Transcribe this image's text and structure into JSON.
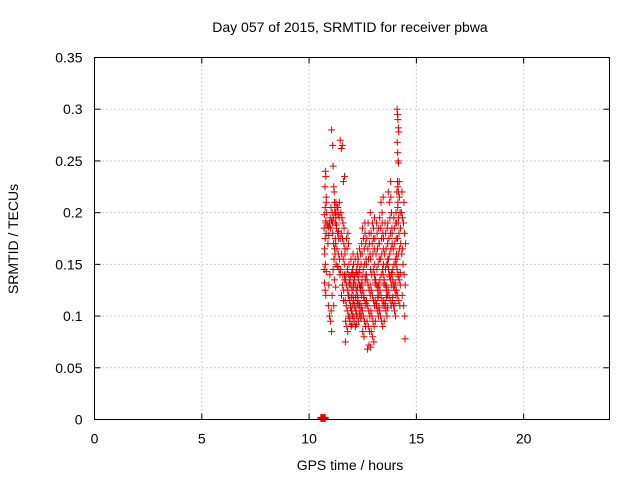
{
  "chart_data": {
    "type": "scatter",
    "title": "Day 057 of 2015, SRMTID for receiver pbwa",
    "xlabel": "GPS time / hours",
    "ylabel": "SRMTID / TECUs",
    "xlim": [
      0,
      24
    ],
    "ylim": [
      0,
      0.35
    ],
    "xticks": [
      "0",
      "5",
      "10",
      "15",
      "20"
    ],
    "yticks": [
      "0",
      "0.05",
      "0.1",
      "0.15",
      "0.2",
      "0.25",
      "0.3",
      "0.35"
    ],
    "grid": true,
    "legend": "none",
    "marker": "plus",
    "color": "#e00000",
    "series": [
      {
        "x": [
          10.55,
          10.6,
          10.65,
          10.7,
          10.75,
          10.55,
          10.6,
          10.65,
          10.7,
          10.75,
          10.7,
          10.72,
          10.75,
          10.78,
          10.8,
          10.72,
          10.75,
          10.78,
          10.8,
          10.74,
          10.76,
          10.78,
          10.8,
          10.82,
          10.7,
          10.73,
          10.76,
          10.79,
          10.71,
          10.75,
          10.78,
          10.85,
          10.9,
          10.95,
          11.0,
          11.05,
          10.88,
          10.92,
          10.98,
          11.02,
          10.9,
          10.95,
          11.0,
          11.05,
          10.92,
          10.97,
          11.03,
          11.05,
          11.1,
          11.12,
          11.15,
          11.18,
          11.08,
          11.13,
          11.17,
          11.2,
          11.1,
          11.14,
          11.19,
          11.22,
          11.09,
          11.16,
          11.21,
          11.12,
          11.18,
          11.24,
          11.07,
          11.15,
          11.2,
          11.25,
          11.3,
          11.35,
          11.4,
          11.22,
          11.28,
          11.33,
          11.38,
          11.24,
          11.3,
          11.36,
          11.42,
          11.26,
          11.32,
          11.39,
          11.44,
          11.23,
          11.34,
          11.41,
          11.28,
          11.37,
          11.45,
          11.25,
          11.35,
          11.45,
          11.5,
          11.55,
          11.6,
          11.65,
          11.48,
          11.53,
          11.58,
          11.63,
          11.5,
          11.56,
          11.62,
          11.67,
          11.52,
          11.59,
          11.66,
          11.47,
          11.57,
          11.64,
          11.55,
          11.61,
          11.51,
          11.6,
          11.65,
          11.7,
          11.75,
          11.8,
          11.85,
          11.68,
          11.73,
          11.78,
          11.83,
          11.7,
          11.76,
          11.82,
          11.87,
          11.72,
          11.79,
          11.86,
          11.67,
          11.77,
          11.84,
          11.74,
          11.81,
          11.69,
          11.8,
          11.85,
          11.9,
          11.95,
          12.0,
          12.05,
          11.88,
          11.93,
          11.98,
          12.03,
          11.9,
          11.96,
          12.02,
          12.07,
          11.92,
          11.99,
          12.06,
          11.87,
          11.97,
          12.04,
          11.94,
          12.01,
          11.89,
          12.0,
          11.95,
          12.05,
          12.05,
          12.1,
          12.15,
          12.2,
          12.25,
          12.08,
          12.13,
          12.18,
          12.23,
          12.1,
          12.16,
          12.22,
          12.27,
          12.12,
          12.19,
          12.26,
          12.07,
          12.17,
          12.24,
          12.14,
          12.21,
          12.09,
          12.2,
          12.15,
          12.25,
          12.25,
          12.3,
          12.35,
          12.4,
          12.45,
          12.28,
          12.33,
          12.38,
          12.43,
          12.3,
          12.36,
          12.42,
          12.47,
          12.32,
          12.39,
          12.46,
          12.27,
          12.37,
          12.44,
          12.34,
          12.41,
          12.29,
          12.4,
          12.35,
          12.45,
          12.45,
          12.5,
          12.55,
          12.6,
          12.65,
          12.48,
          12.53,
          12.58,
          12.63,
          12.5,
          12.56,
          12.62,
          12.67,
          12.52,
          12.59,
          12.66,
          12.47,
          12.57,
          12.64,
          12.54,
          12.61,
          12.49,
          12.6,
          12.55,
          12.65,
          12.65,
          12.7,
          12.75,
          12.8,
          12.85,
          12.68,
          12.73,
          12.78,
          12.83,
          12.7,
          12.76,
          12.82,
          12.87,
          12.72,
          12.79,
          12.86,
          12.67,
          12.77,
          12.84,
          12.74,
          12.81,
          12.69,
          12.8,
          12.75,
          12.85,
          12.85,
          12.9,
          12.95,
          13.0,
          13.05,
          12.88,
          12.93,
          12.98,
          13.03,
          12.9,
          12.96,
          13.02,
          13.07,
          12.92,
          12.99,
          13.06,
          12.87,
          12.97,
          13.04,
          12.94,
          13.01,
          12.89,
          13.0,
          12.95,
          13.05,
          13.05,
          13.1,
          13.15,
          13.2,
          13.25,
          13.08,
          13.13,
          13.18,
          13.23,
          13.1,
          13.16,
          13.22,
          13.27,
          13.12,
          13.19,
          13.26,
          13.07,
          13.17,
          13.24,
          13.14,
          13.21,
          13.09,
          13.2,
          13.15,
          13.25,
          13.25,
          13.3,
          13.35,
          13.4,
          13.45,
          13.28,
          13.33,
          13.38,
          13.43,
          13.3,
          13.36,
          13.42,
          13.47,
          13.32,
          13.39,
          13.46,
          13.27,
          13.37,
          13.44,
          13.34,
          13.41,
          13.29,
          13.4,
          13.35,
          13.45,
          13.45,
          13.5,
          13.55,
          13.6,
          13.65,
          13.48,
          13.53,
          13.58,
          13.63,
          13.5,
          13.56,
          13.62,
          13.67,
          13.52,
          13.59,
          13.66,
          13.47,
          13.57,
          13.64,
          13.54,
          13.61,
          13.49,
          13.6,
          13.55,
          13.65,
          13.65,
          13.7,
          13.75,
          13.8,
          13.85,
          13.68,
          13.73,
          13.78,
          13.83,
          13.7,
          13.76,
          13.82,
          13.87,
          13.72,
          13.79,
          13.86,
          13.67,
          13.77,
          13.84,
          13.74,
          13.81,
          13.69,
          13.8,
          13.75,
          13.85,
          13.85,
          13.9,
          13.95,
          14.0,
          14.05,
          13.88,
          13.93,
          13.98,
          14.03,
          13.9,
          13.96,
          14.02,
          14.07,
          13.92,
          13.99,
          14.06,
          13.87,
          13.97,
          14.04,
          13.94,
          14.01,
          13.89,
          14.0,
          13.95,
          14.05,
          14.05,
          14.1,
          14.15,
          14.2,
          14.25,
          14.08,
          14.13,
          14.18,
          14.23,
          14.1,
          14.16,
          14.22,
          14.27,
          14.12,
          14.19,
          14.26,
          14.07,
          14.17,
          14.24,
          14.14,
          14.21,
          14.09,
          14.2,
          14.15,
          14.25,
          14.1,
          14.12,
          14.14,
          14.16,
          14.18,
          14.11,
          14.13,
          14.15,
          14.17,
          14.12,
          14.14,
          14.16,
          14.13,
          14.15,
          14.3,
          14.35,
          14.4,
          14.45,
          14.5,
          14.32,
          14.38,
          14.43,
          14.48,
          14.34,
          14.41,
          14.46,
          14.33,
          14.42,
          14.47,
          14.36
        ],
        "y": [
          0.001,
          0.001,
          0.001,
          0.001,
          0.001,
          0.002,
          0.002,
          0.002,
          0.002,
          0.002,
          0.145,
          0.132,
          0.125,
          0.12,
          0.143,
          0.165,
          0.175,
          0.19,
          0.21,
          0.225,
          0.24,
          0.235,
          0.215,
          0.2,
          0.185,
          0.16,
          0.15,
          0.18,
          0.198,
          0.205,
          0.192,
          0.188,
          0.186,
          0.19,
          0.185,
          0.192,
          0.17,
          0.178,
          0.195,
          0.205,
          0.11,
          0.1,
          0.095,
          0.085,
          0.13,
          0.14,
          0.105,
          0.28,
          0.265,
          0.245,
          0.225,
          0.21,
          0.2,
          0.195,
          0.22,
          0.205,
          0.18,
          0.17,
          0.165,
          0.175,
          0.19,
          0.155,
          0.16,
          0.145,
          0.135,
          0.128,
          0.12,
          0.11,
          0.2,
          0.21,
          0.205,
          0.198,
          0.195,
          0.19,
          0.185,
          0.18,
          0.175,
          0.17,
          0.165,
          0.16,
          0.155,
          0.15,
          0.148,
          0.145,
          0.14,
          0.2,
          0.205,
          0.21,
          0.188,
          0.182,
          0.175,
          0.195,
          0.2,
          0.27,
          0.262,
          0.265,
          0.23,
          0.235,
          0.2,
          0.195,
          0.19,
          0.185,
          0.18,
          0.175,
          0.17,
          0.165,
          0.16,
          0.155,
          0.15,
          0.145,
          0.14,
          0.135,
          0.13,
          0.125,
          0.12,
          0.115,
          0.14,
          0.135,
          0.13,
          0.125,
          0.12,
          0.115,
          0.11,
          0.105,
          0.1,
          0.095,
          0.09,
          0.12,
          0.13,
          0.14,
          0.145,
          0.15,
          0.16,
          0.165,
          0.17,
          0.175,
          0.18,
          0.075,
          0.085,
          0.14,
          0.135,
          0.13,
          0.125,
          0.12,
          0.115,
          0.11,
          0.105,
          0.1,
          0.095,
          0.09,
          0.145,
          0.15,
          0.138,
          0.142,
          0.128,
          0.132,
          0.118,
          0.112,
          0.108,
          0.102,
          0.098,
          0.092,
          0.155,
          0.16,
          0.14,
          0.135,
          0.13,
          0.125,
          0.12,
          0.115,
          0.11,
          0.105,
          0.1,
          0.095,
          0.09,
          0.145,
          0.15,
          0.138,
          0.142,
          0.128,
          0.132,
          0.118,
          0.112,
          0.108,
          0.102,
          0.098,
          0.092,
          0.155,
          0.16,
          0.14,
          0.135,
          0.13,
          0.125,
          0.12,
          0.115,
          0.11,
          0.105,
          0.1,
          0.095,
          0.145,
          0.15,
          0.138,
          0.142,
          0.128,
          0.132,
          0.118,
          0.112,
          0.108,
          0.102,
          0.098,
          0.155,
          0.16,
          0.165,
          0.17,
          0.13,
          0.125,
          0.12,
          0.115,
          0.11,
          0.105,
          0.1,
          0.095,
          0.09,
          0.085,
          0.08,
          0.135,
          0.14,
          0.145,
          0.15,
          0.155,
          0.16,
          0.165,
          0.17,
          0.175,
          0.18,
          0.185,
          0.19,
          0.118,
          0.112,
          0.14,
          0.135,
          0.13,
          0.125,
          0.12,
          0.115,
          0.11,
          0.105,
          0.1,
          0.095,
          0.09,
          0.085,
          0.07,
          0.068,
          0.072,
          0.145,
          0.15,
          0.155,
          0.16,
          0.165,
          0.17,
          0.175,
          0.18,
          0.19,
          0.2,
          0.13,
          0.125,
          0.12,
          0.115,
          0.11,
          0.105,
          0.1,
          0.095,
          0.09,
          0.085,
          0.08,
          0.075,
          0.135,
          0.14,
          0.145,
          0.15,
          0.155,
          0.16,
          0.165,
          0.17,
          0.175,
          0.18,
          0.185,
          0.19,
          0.195,
          0.14,
          0.135,
          0.13,
          0.125,
          0.12,
          0.115,
          0.11,
          0.105,
          0.1,
          0.095,
          0.145,
          0.15,
          0.155,
          0.16,
          0.165,
          0.17,
          0.175,
          0.18,
          0.185,
          0.19,
          0.128,
          0.132,
          0.118,
          0.112,
          0.108,
          0.13,
          0.125,
          0.12,
          0.115,
          0.11,
          0.105,
          0.1,
          0.095,
          0.09,
          0.135,
          0.14,
          0.145,
          0.15,
          0.155,
          0.16,
          0.165,
          0.17,
          0.175,
          0.18,
          0.185,
          0.19,
          0.195,
          0.2,
          0.21,
          0.215,
          0.14,
          0.135,
          0.13,
          0.125,
          0.12,
          0.115,
          0.11,
          0.105,
          0.1,
          0.095,
          0.145,
          0.15,
          0.155,
          0.16,
          0.165,
          0.17,
          0.175,
          0.18,
          0.185,
          0.19,
          0.128,
          0.132,
          0.118,
          0.112,
          0.108,
          0.15,
          0.145,
          0.14,
          0.135,
          0.13,
          0.125,
          0.12,
          0.115,
          0.11,
          0.155,
          0.16,
          0.165,
          0.17,
          0.175,
          0.18,
          0.185,
          0.19,
          0.195,
          0.2,
          0.21,
          0.215,
          0.22,
          0.23,
          0.138,
          0.142,
          0.14,
          0.135,
          0.13,
          0.125,
          0.12,
          0.115,
          0.11,
          0.105,
          0.1,
          0.145,
          0.15,
          0.155,
          0.16,
          0.165,
          0.17,
          0.175,
          0.18,
          0.185,
          0.19,
          0.128,
          0.132,
          0.118,
          0.112,
          0.195,
          0.2,
          0.15,
          0.145,
          0.14,
          0.135,
          0.13,
          0.125,
          0.12,
          0.115,
          0.11,
          0.155,
          0.16,
          0.165,
          0.17,
          0.175,
          0.18,
          0.185,
          0.19,
          0.195,
          0.2,
          0.21,
          0.215,
          0.22,
          0.23,
          0.138,
          0.142,
          0.3,
          0.295,
          0.29,
          0.282,
          0.278,
          0.268,
          0.258,
          0.25,
          0.248,
          0.23,
          0.225,
          0.22,
          0.205,
          0.19,
          0.2,
          0.195,
          0.19,
          0.18,
          0.17,
          0.16,
          0.15,
          0.14,
          0.13,
          0.12,
          0.11,
          0.1,
          0.22,
          0.21,
          0.078,
          0.165
        ]
      }
    ]
  }
}
